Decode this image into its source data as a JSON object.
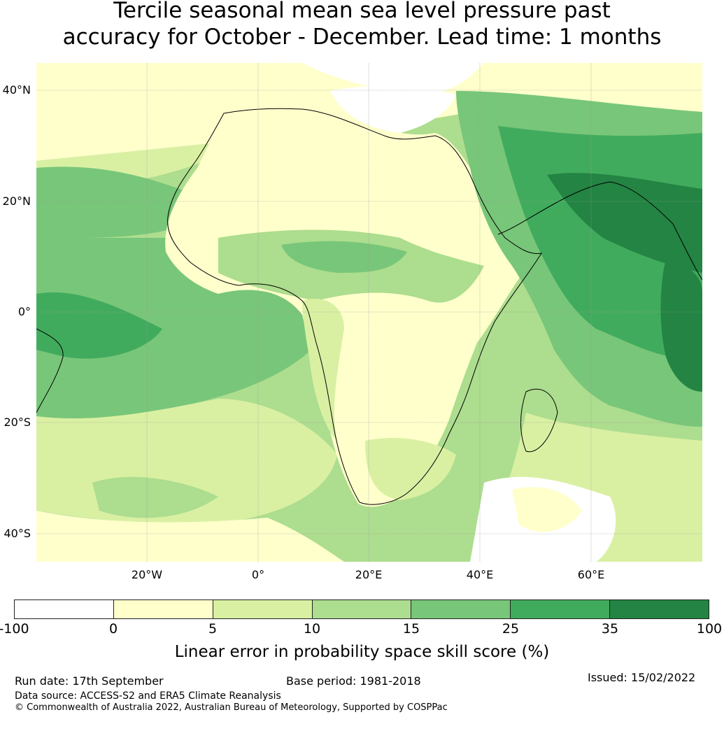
{
  "title_line1": "Tercile seasonal mean sea level pressure past",
  "title_line2": "accuracy for October - December. Lead time: 1 months",
  "map": {
    "lat_labels": [
      "40°N",
      "20°N",
      "0°",
      "20°S",
      "40°S"
    ],
    "lon_labels": [
      "20°W",
      "0°",
      "20°E",
      "40°E",
      "60°E"
    ],
    "colors": {
      "ocean_base": "#a9db8e",
      "land_base": "#f4fbc0",
      "coast": "#000000",
      "grid": "#9a9a9a"
    }
  },
  "colorbar": {
    "ticks": [
      "-100",
      "0",
      "5",
      "10",
      "15",
      "25",
      "35",
      "100"
    ],
    "colors": [
      "#ffffff",
      "#ffffcc",
      "#d9f0a3",
      "#addd8e",
      "#78c679",
      "#41ab5d",
      "#238443"
    ],
    "label": "Linear error in probability space skill score (%)"
  },
  "footer": {
    "run_date": "Run date: 17th September",
    "base_period": "Base period: 1981-2018",
    "issued": "Issued: 15/02/2022",
    "data_source": "Data source: ACCESS-S2 and ERA5 Climate Reanalysis",
    "copyright": "© Commonwealth of Australia 2022, Australian Bureau of Meteorology, Supported by COSPPac"
  }
}
